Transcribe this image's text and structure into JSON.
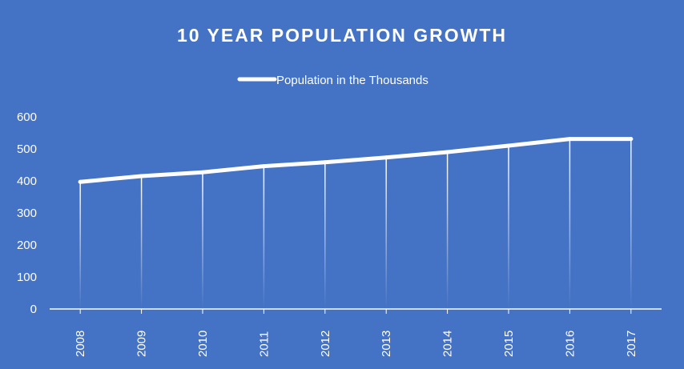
{
  "colors": {
    "background": "#4472C4",
    "foreground": "#FFFFFF"
  },
  "chart_data": {
    "type": "line",
    "title": "10 YEAR POPULATION GROWTH",
    "xlabel": "",
    "ylabel": "",
    "legend_position": "top",
    "grid": false,
    "drop_lines": true,
    "categories": [
      "2008",
      "2009",
      "2010",
      "2011",
      "2012",
      "2013",
      "2014",
      "2015",
      "2016",
      "2017"
    ],
    "series": [
      {
        "name": "Population in the Thousands",
        "values": [
          397,
          415,
          427,
          446,
          458,
          473,
          490,
          510,
          531,
          531
        ]
      }
    ],
    "ylim": [
      0,
      600
    ],
    "yticks": [
      0,
      100,
      200,
      300,
      400,
      500,
      600
    ]
  }
}
